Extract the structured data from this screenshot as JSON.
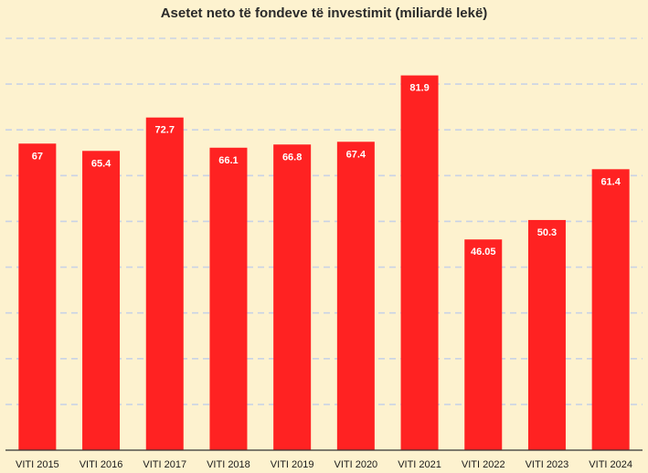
{
  "chart_data": {
    "type": "bar",
    "title": "Asetet neto të fondeve të investimit (miliardë lekë)",
    "categories": [
      "VITI 2015",
      "VITI 2016",
      "VITI 2017",
      "VITI 2018",
      "VITI 2019",
      "VITI 2020",
      "VITI 2021",
      "VITI 2022",
      "VITI 2023",
      "VITI 2024"
    ],
    "values": [
      67,
      65.4,
      72.7,
      66.1,
      66.8,
      67.4,
      81.9,
      46.05,
      50.3,
      61.4
    ],
    "value_labels": [
      "67",
      "65.4",
      "72.7",
      "66.1",
      "66.8",
      "67.4",
      "81.9",
      "46.05",
      "50.3",
      "61.4"
    ],
    "ylim": [
      0,
      90
    ],
    "gridline_step": 10,
    "grid": true,
    "legend": "none",
    "colors": {
      "bar": "#ff2222",
      "background": "#fdf2cf",
      "grid": "#c9d3e6"
    }
  }
}
